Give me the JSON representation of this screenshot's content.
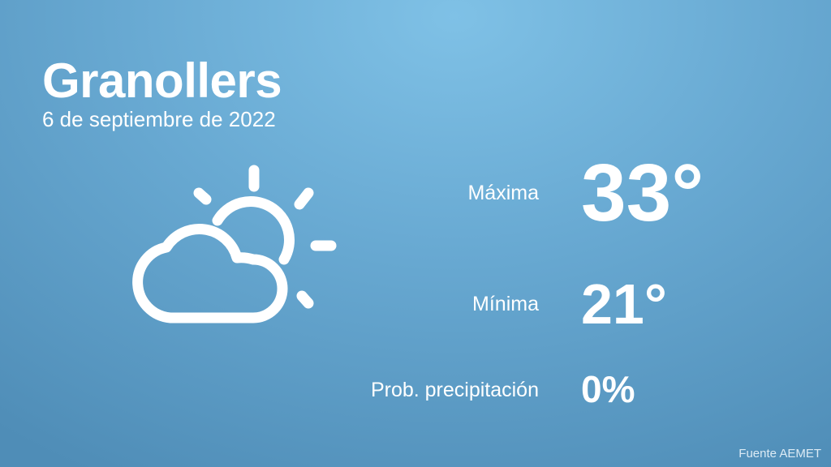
{
  "header": {
    "city": "Granollers",
    "date": "6 de septiembre de 2022"
  },
  "weather": {
    "icon": "partly-cloudy-icon",
    "max_label": "Máxima",
    "max_value": "33°",
    "min_label": "Mínima",
    "min_value": "21°",
    "precip_label": "Prob. precipitación",
    "precip_value": "0%"
  },
  "footer": {
    "source": "Fuente AEMET"
  },
  "colors": {
    "background_top": "#7fc1e6",
    "background_bottom": "#4f8db7",
    "text": "#ffffff"
  }
}
